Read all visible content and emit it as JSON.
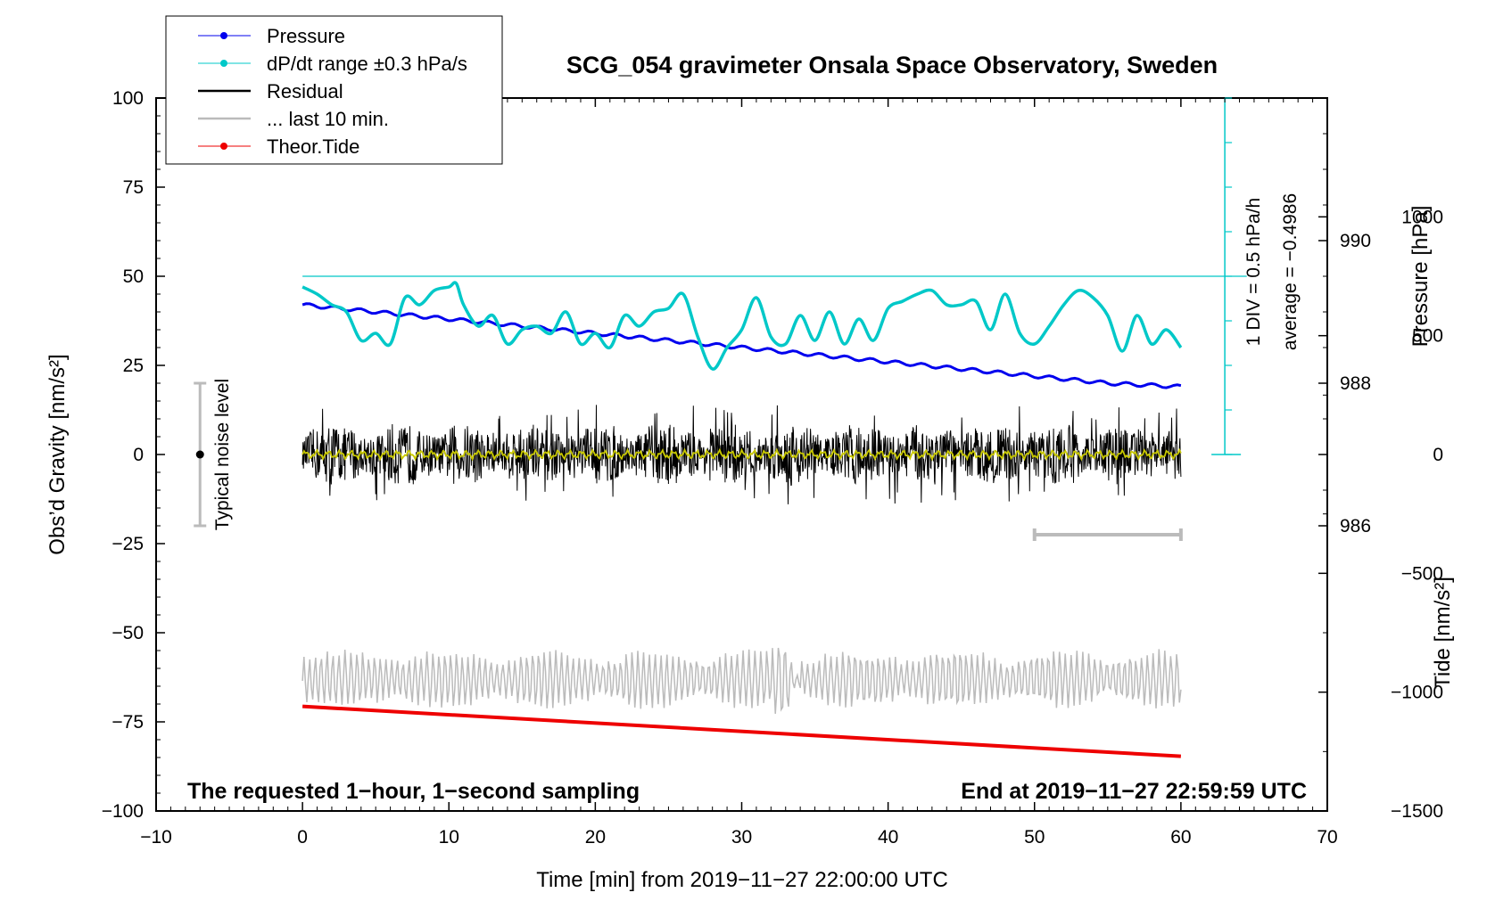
{
  "chart_data": {
    "type": "line",
    "title": "SCG_054 gravimeter Onsala Space Observatory, Sweden",
    "xlabel": "Time [min] from 2019−11−27 22:00:00 UTC",
    "ylabel_left": "Obs’d Gravity [nm/s²]",
    "ylabel_right_pressure": "Pressure [hPa]",
    "ylabel_right_tide": "Tide [nm/s²]",
    "xlim": [
      -10,
      70
    ],
    "ylim": [
      -100,
      100
    ],
    "pressure_ylim": [
      982,
      992
    ],
    "tide_ylim": [
      -1500,
      1500
    ],
    "x_ticks": [
      "−10",
      "0",
      "10",
      "20",
      "30",
      "40",
      "50",
      "60",
      "70"
    ],
    "y_ticks": [
      "100",
      "75",
      "50",
      "25",
      "0",
      "−25",
      "−50",
      "−75",
      "−100"
    ],
    "pressure_ticks": [
      "990",
      "988",
      "986"
    ],
    "tide_ticks": [
      "1000",
      "500",
      "0",
      "−500",
      "−1000",
      "−1500"
    ],
    "legend": {
      "position": "top-left",
      "entries": [
        {
          "label": "Pressure",
          "color": "#0000ee"
        },
        {
          "label": "dP/dt range ±0.3 hPa/s",
          "color": "#00c8c8"
        },
        {
          "label": "Residual",
          "color": "#000000"
        },
        {
          "label": "... last 10 min.",
          "color": "#bbbbbb"
        },
        {
          "label": "Theor.Tide",
          "color": "#ee0000"
        }
      ]
    },
    "series": [
      {
        "name": "Pressure",
        "axis": "pressure_hPa",
        "color": "#0000ee",
        "x": [
          0,
          5,
          10,
          15,
          20,
          25,
          30,
          35,
          40,
          45,
          50,
          55,
          60
        ],
        "values": [
          989.1,
          989.0,
          988.9,
          988.8,
          988.7,
          988.6,
          988.5,
          988.4,
          988.3,
          988.2,
          988.1,
          988.0,
          987.95
        ]
      },
      {
        "name": "dP/dt",
        "axis": "gravity_display_nm_s2",
        "color": "#00c8c8",
        "x": [
          0,
          1,
          2,
          3,
          4,
          5,
          6,
          7,
          8,
          9,
          10,
          10.5,
          11,
          12,
          13,
          14,
          15,
          16,
          17,
          18,
          19,
          20,
          21,
          22,
          23,
          24,
          25,
          26,
          27,
          28,
          29,
          30,
          31,
          32,
          33,
          34,
          35,
          36,
          37,
          38,
          39,
          40,
          41,
          42,
          43,
          44,
          45,
          46,
          47,
          48,
          49,
          50,
          51,
          52,
          53,
          54,
          55,
          56,
          57,
          58,
          59,
          60
        ],
        "values": [
          47,
          45,
          42,
          40,
          32,
          34,
          31,
          44,
          42,
          46,
          47,
          48,
          42,
          36,
          39,
          31,
          35,
          36,
          34,
          40,
          31,
          34,
          30,
          39,
          36,
          40,
          41,
          45,
          33,
          24,
          30,
          35,
          44,
          33,
          31,
          39,
          32,
          40,
          31,
          38,
          32,
          41,
          43,
          45,
          46,
          42,
          42,
          43,
          35,
          45,
          34,
          31,
          36,
          42,
          46,
          44,
          39,
          29,
          39,
          31,
          35,
          30
        ]
      },
      {
        "name": "Residual",
        "axis": "gravity_nm_s2",
        "color": "#000000",
        "x_range": [
          0,
          60
        ],
        "typical_amplitude": 6,
        "max_amplitude": 14
      },
      {
        "name": "... last 10 min.",
        "axis": "gravity_display_nm_s2",
        "color": "#bbbbbb",
        "x_range": [
          0,
          60
        ],
        "center": -63,
        "amplitude": 7
      },
      {
        "name": "Theor.Tide",
        "axis": "tide_nm_s2",
        "color": "#ee0000",
        "x": [
          0,
          60
        ],
        "values": [
          -1060,
          -1270
        ]
      }
    ],
    "annotations": {
      "noise_label": "Typical noise level",
      "noise_range": [
        -20,
        20
      ],
      "scale_note_1": "1 DIV = 0.5 hPa/h",
      "scale_note_2": "average = −0.4986",
      "ten_min_bar_x": [
        50,
        60
      ],
      "bottom_left": "The requested 1−hour, 1−second sampling",
      "bottom_right": "End at 2019−11−27 22:59:59 UTC"
    }
  },
  "colors": {
    "pressure": "#0000ee",
    "dpdt": "#00c8c8",
    "residual": "#000000",
    "residual_avg": "#c8c800",
    "last10": "#bbbbbb",
    "tide": "#ee0000",
    "axis": "#000000"
  }
}
